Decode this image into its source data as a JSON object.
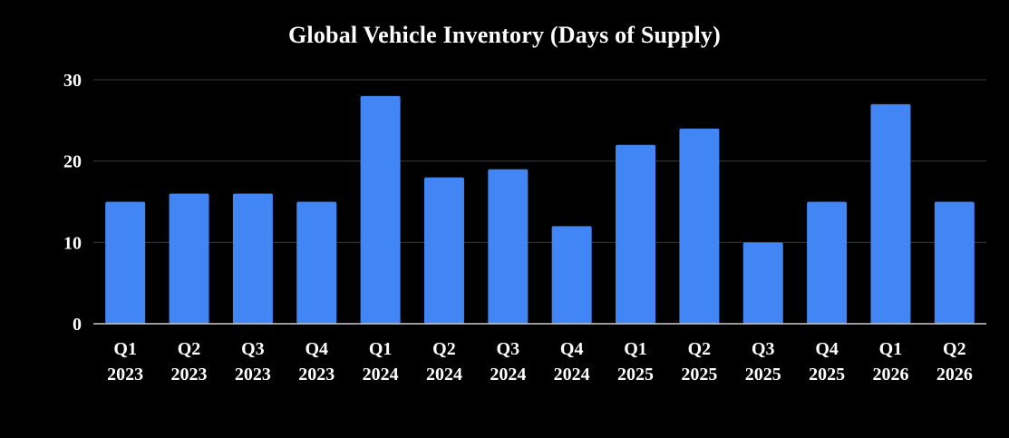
{
  "chart_data": {
    "type": "bar",
    "title": "Global Vehicle Inventory (Days of Supply)",
    "xlabel": "",
    "ylabel": "",
    "categories": [
      [
        "Q1",
        "2023"
      ],
      [
        "Q2",
        "2023"
      ],
      [
        "Q3",
        "2023"
      ],
      [
        "Q4",
        "2023"
      ],
      [
        "Q1",
        "2024"
      ],
      [
        "Q2",
        "2024"
      ],
      [
        "Q3",
        "2024"
      ],
      [
        "Q4",
        "2024"
      ],
      [
        "Q1",
        "2025"
      ],
      [
        "Q2",
        "2025"
      ],
      [
        "Q3",
        "2025"
      ],
      [
        "Q4",
        "2025"
      ],
      [
        "Q1",
        "2026"
      ],
      [
        "Q2",
        "2026"
      ]
    ],
    "values": [
      15,
      16,
      16,
      15,
      28,
      18,
      19,
      12,
      22,
      24,
      10,
      15,
      27,
      15
    ],
    "ylim": [
      0,
      30
    ],
    "yticks": [
      0,
      10,
      20,
      30
    ],
    "grid": true,
    "legend": "none",
    "colors": {
      "background": "#000000",
      "bar": "#4285F4",
      "gridline": "#3a3a3a",
      "axis": "#cccccc",
      "text": "#ffffff"
    }
  }
}
